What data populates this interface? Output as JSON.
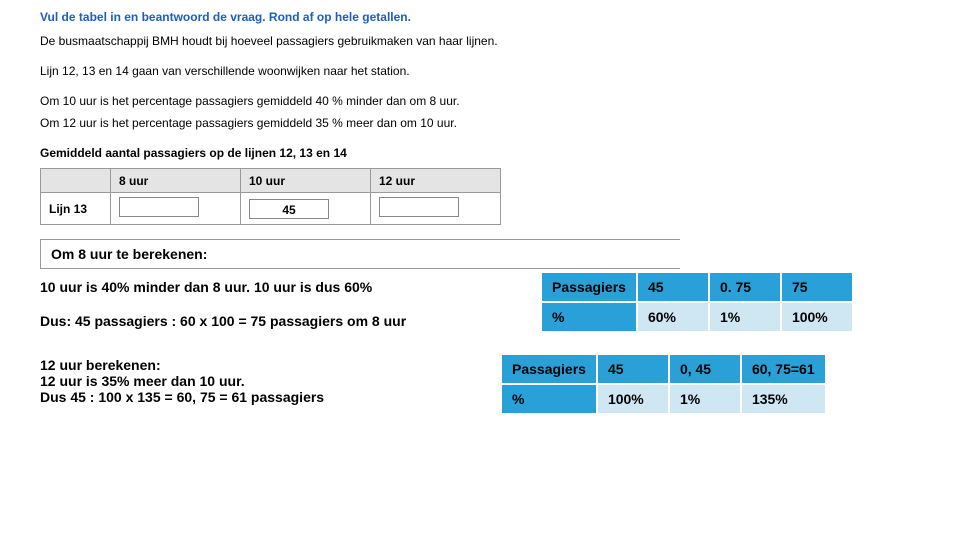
{
  "question": {
    "instruction": "Vul de tabel in en beantwoord de vraag. Rond af op hele getallen.",
    "context1": "De busmaatschappij BMH houdt bij hoeveel passagiers gebruikmaken van haar lijnen.",
    "context2": "Lijn 12, 13 en 14 gaan van verschillende woonwijken naar het station.",
    "context3": "Om 10 uur is het percentage passagiers gemiddeld 40 % minder dan om 8 uur.",
    "context4": "Om 12 uur is het percentage passagiers gemiddeld 35 % meer dan om 10 uur.",
    "table_title": "Gemiddeld aantal passagiers op de lijnen 12, 13 en 14"
  },
  "time_table": {
    "headers": [
      "",
      "8 uur",
      "10 uur",
      "12 uur"
    ],
    "row_label": "Lijn 13",
    "cells": {
      "c8": "",
      "c10": "45",
      "c12": ""
    }
  },
  "calc8": {
    "title": "Om 8 uur te berekenen:",
    "line1": "10 uur is 40% minder dan 8 uur. 10 uur is dus 60%",
    "line2": "Dus: 45 passagiers : 60 x 100 = 75 passagiers om 8 uur",
    "table": {
      "label1": "Passagiers",
      "r1c1": "45",
      "r1c2": "0. 75",
      "r1c3": "75",
      "label2": "%",
      "r2c1": "60%",
      "r2c2": "1%",
      "r2c3": "100%"
    }
  },
  "calc12": {
    "line1": "12 uur berekenen:",
    "line2": "12 uur is 35% meer dan 10 uur.",
    "line3": "Dus 45 : 100 x 135 = 60, 75 = 61 passagiers",
    "table": {
      "label1": "Passagiers",
      "r1c1": "45",
      "r1c2": "0, 45",
      "r1c3": "60, 75=61",
      "label2": "%",
      "r2c1": "100%",
      "r2c2": "1%",
      "r2c3": "135%"
    }
  },
  "colors": {
    "header_bg": "#2aa0d8",
    "cell_bg": "#cfe7f3"
  }
}
